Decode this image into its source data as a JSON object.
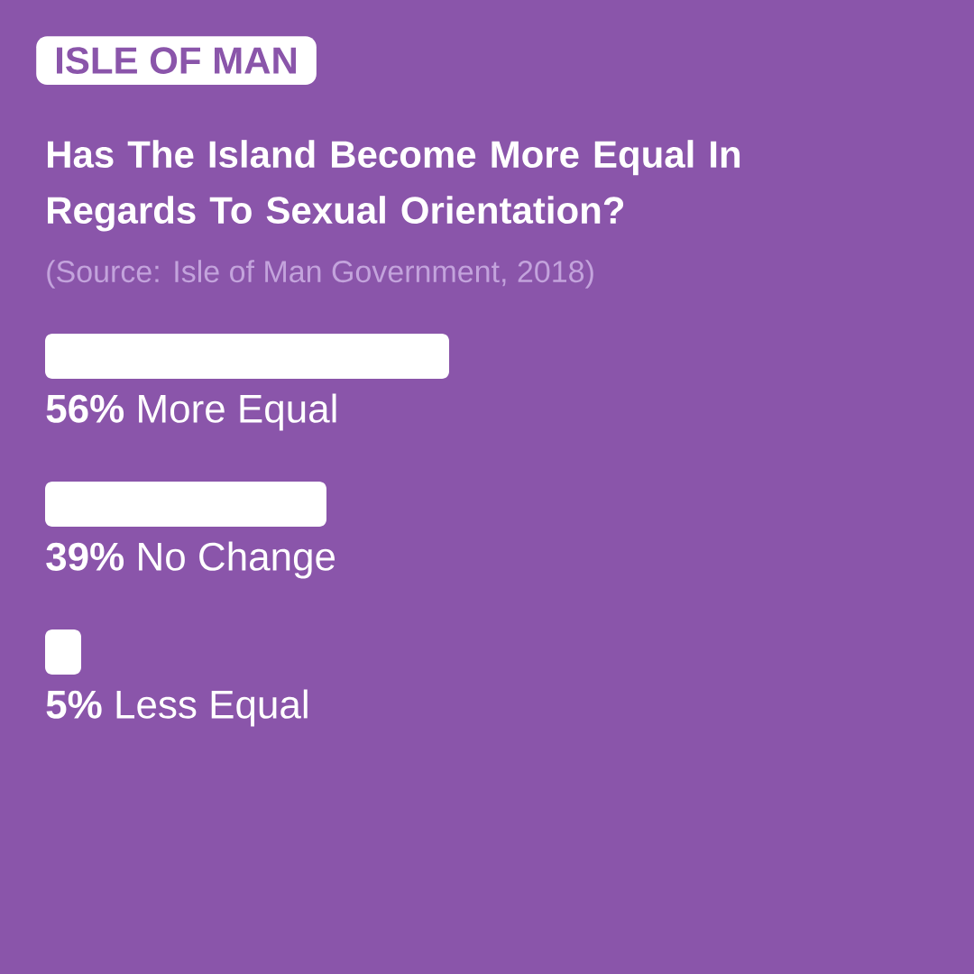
{
  "chart_data": {
    "type": "bar",
    "orientation": "horizontal",
    "subtitle": "ISLE OF MAN",
    "title": "Has The Island Become More Equal In Regards To Sexual Orientation?",
    "annotations": [
      "(Source: Isle of Man Government, 2018)"
    ],
    "categories": [
      "More Equal",
      "No Change",
      "Less Equal"
    ],
    "values": [
      56,
      39,
      5
    ],
    "value_labels": [
      "56%",
      "39%",
      "5%"
    ],
    "color": "#ffffff"
  }
}
